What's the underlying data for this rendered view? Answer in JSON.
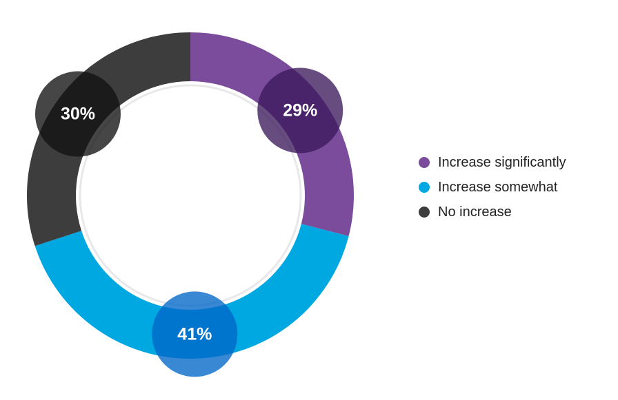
{
  "chart_data": {
    "type": "pie",
    "categories": [
      "Increase significantly",
      "Increase somewhat",
      "No increase"
    ],
    "values": [
      29,
      41,
      30
    ],
    "value_labels": [
      "29%",
      "41%",
      "30%"
    ],
    "colors": [
      "#7b4c9b",
      "#00a8e1",
      "#3d3d3d"
    ],
    "bubble_colors": [
      "#3c1a5c",
      "#0067c8",
      "#121212"
    ],
    "legend": "right",
    "title": "",
    "style": "donut"
  },
  "legend": {
    "items": [
      {
        "label": "Increase significantly",
        "color": "#7b4c9b"
      },
      {
        "label": "Increase somewhat",
        "color": "#00a8e1"
      },
      {
        "label": "No increase",
        "color": "#3d3d3d"
      }
    ]
  }
}
